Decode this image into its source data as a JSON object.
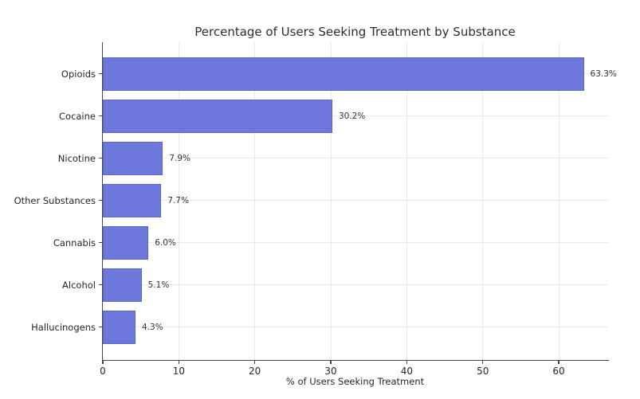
{
  "chart_data": {
    "type": "bar",
    "orientation": "horizontal",
    "title": "Percentage of Users Seeking Treatment by Substance",
    "xlabel": "% of Users Seeking Treatment",
    "ylabel": "",
    "categories": [
      "Opioids",
      "Cocaine",
      "Nicotine",
      "Other Substances",
      "Cannabis",
      "Alcohol",
      "Hallucinogens"
    ],
    "values": [
      63.3,
      30.2,
      7.9,
      7.7,
      6.0,
      5.1,
      4.3
    ],
    "value_labels": [
      "63.3%",
      "30.2%",
      "7.9%",
      "7.7%",
      "6.0%",
      "5.1%",
      "4.3%"
    ],
    "x_ticks": [
      0,
      10,
      20,
      30,
      40,
      50,
      60
    ],
    "x_tick_labels": [
      "0",
      "10",
      "20",
      "30",
      "40",
      "50",
      "60"
    ],
    "xlim": [
      0,
      66.6
    ],
    "grid": true,
    "legend": "none",
    "colors": {
      "bar_fill": "#6c78dc",
      "bar_edge": "#5c68c8",
      "grid_line": "#e9e9e9",
      "axis_line": "#454545",
      "text": "#262626"
    }
  }
}
